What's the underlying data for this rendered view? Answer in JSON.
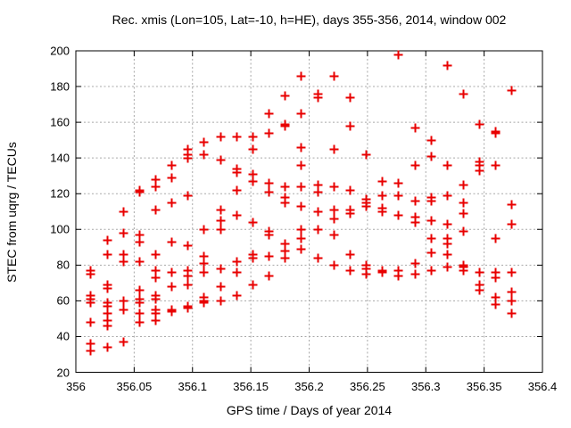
{
  "title": "Rec. xmis (Lon=105, Lat=-10, h=HE), days 355-356, 2014, window 002",
  "chart_data": {
    "type": "scatter",
    "title": "Rec. xmis (Lon=105, Lat=-10, h=HE), days 355-356, 2014, window 002",
    "xlabel": "GPS time / Days of year 2014",
    "ylabel": "STEC from uqrg / TECUs",
    "xlim": [
      356,
      356.4
    ],
    "ylim": [
      20,
      200
    ],
    "xticks": [
      356,
      356.05,
      356.1,
      356.15,
      356.2,
      356.25,
      356.3,
      356.35,
      356.4
    ],
    "xtick_labels": [
      "356",
      "356.05",
      "356.1",
      "356.15",
      "356.2",
      "356.25",
      "356.3",
      "356.35",
      "356.4"
    ],
    "yticks": [
      20,
      40,
      60,
      80,
      100,
      120,
      140,
      160,
      180,
      200
    ],
    "ytick_labels": [
      "20",
      "40",
      "60",
      "80",
      "100",
      "120",
      "140",
      "160",
      "180",
      "200"
    ],
    "grid": true,
    "legend_position": "none",
    "marker": "plus",
    "marker_color": "#e80000",
    "grid_color": "#a8a8a8",
    "axis_color": "#000000",
    "epochs": [
      {
        "x": 356.0125,
        "y": [
          77,
          75,
          63,
          61,
          59,
          48,
          36,
          32
        ]
      },
      {
        "x": 356.0264,
        "y": [
          94,
          86,
          69,
          67,
          59,
          57,
          53,
          49,
          46,
          34
        ]
      },
      {
        "x": 356.0403,
        "y": [
          110,
          98,
          86,
          82,
          60,
          55,
          37
        ]
      },
      {
        "x": 356.0542,
        "y": [
          122,
          121,
          97,
          93,
          82,
          66,
          61,
          59,
          53,
          48
        ]
      },
      {
        "x": 356.0681,
        "y": [
          128,
          124,
          111,
          86,
          77,
          73,
          63,
          61,
          55,
          53,
          49
        ]
      },
      {
        "x": 356.0819,
        "y": [
          136,
          129,
          115,
          93,
          76,
          68,
          55,
          54
        ]
      },
      {
        "x": 356.0958,
        "y": [
          145,
          142,
          140,
          119,
          91,
          77,
          74,
          69,
          57,
          56
        ]
      },
      {
        "x": 356.1097,
        "y": [
          149,
          142,
          100,
          85,
          81,
          76,
          62,
          60,
          59
        ]
      },
      {
        "x": 356.1236,
        "y": [
          152,
          139,
          111,
          105,
          100,
          78,
          68,
          60
        ]
      },
      {
        "x": 356.1375,
        "y": [
          152,
          134,
          132,
          122,
          108,
          82,
          76,
          63
        ]
      },
      {
        "x": 356.1514,
        "y": [
          152,
          145,
          131,
          127,
          104,
          86,
          84,
          69
        ]
      },
      {
        "x": 356.1653,
        "y": [
          165,
          154,
          126,
          121,
          99,
          97,
          85,
          74
        ]
      },
      {
        "x": 356.1792,
        "y": [
          175,
          159,
          158,
          124,
          118,
          115,
          92,
          88,
          84
        ]
      },
      {
        "x": 356.1931,
        "y": [
          186,
          165,
          146,
          136,
          124,
          113,
          100,
          95,
          89
        ]
      },
      {
        "x": 356.2069,
        "y": [
          176,
          174,
          125,
          121,
          110,
          100,
          84
        ]
      },
      {
        "x": 356.2208,
        "y": [
          186,
          145,
          124,
          111,
          106,
          97,
          80
        ]
      },
      {
        "x": 356.2347,
        "y": [
          174,
          158,
          122,
          111,
          109,
          86,
          77
        ]
      },
      {
        "x": 356.2486,
        "y": [
          142,
          117,
          115,
          113,
          80,
          78,
          75
        ]
      },
      {
        "x": 356.2625,
        "y": [
          127,
          119,
          112,
          110,
          77,
          76
        ]
      },
      {
        "x": 356.2764,
        "y": [
          198,
          126,
          119,
          108,
          77,
          74
        ]
      },
      {
        "x": 356.2903,
        "y": [
          157,
          136,
          116,
          107,
          104,
          81,
          75
        ]
      },
      {
        "x": 356.3042,
        "y": [
          150,
          141,
          118,
          116,
          105,
          95,
          87,
          77
        ]
      },
      {
        "x": 356.3181,
        "y": [
          192,
          136,
          119,
          103,
          95,
          92,
          86,
          79
        ]
      },
      {
        "x": 356.3319,
        "y": [
          176,
          125,
          115,
          109,
          99,
          80,
          79,
          77
        ]
      },
      {
        "x": 356.3458,
        "y": [
          159,
          138,
          136,
          133,
          76,
          69,
          66
        ]
      },
      {
        "x": 356.3597,
        "y": [
          155,
          154,
          136,
          95,
          76,
          73,
          62,
          58
        ]
      },
      {
        "x": 356.3736,
        "y": [
          178,
          114,
          103,
          76,
          65,
          60,
          53
        ]
      }
    ]
  }
}
